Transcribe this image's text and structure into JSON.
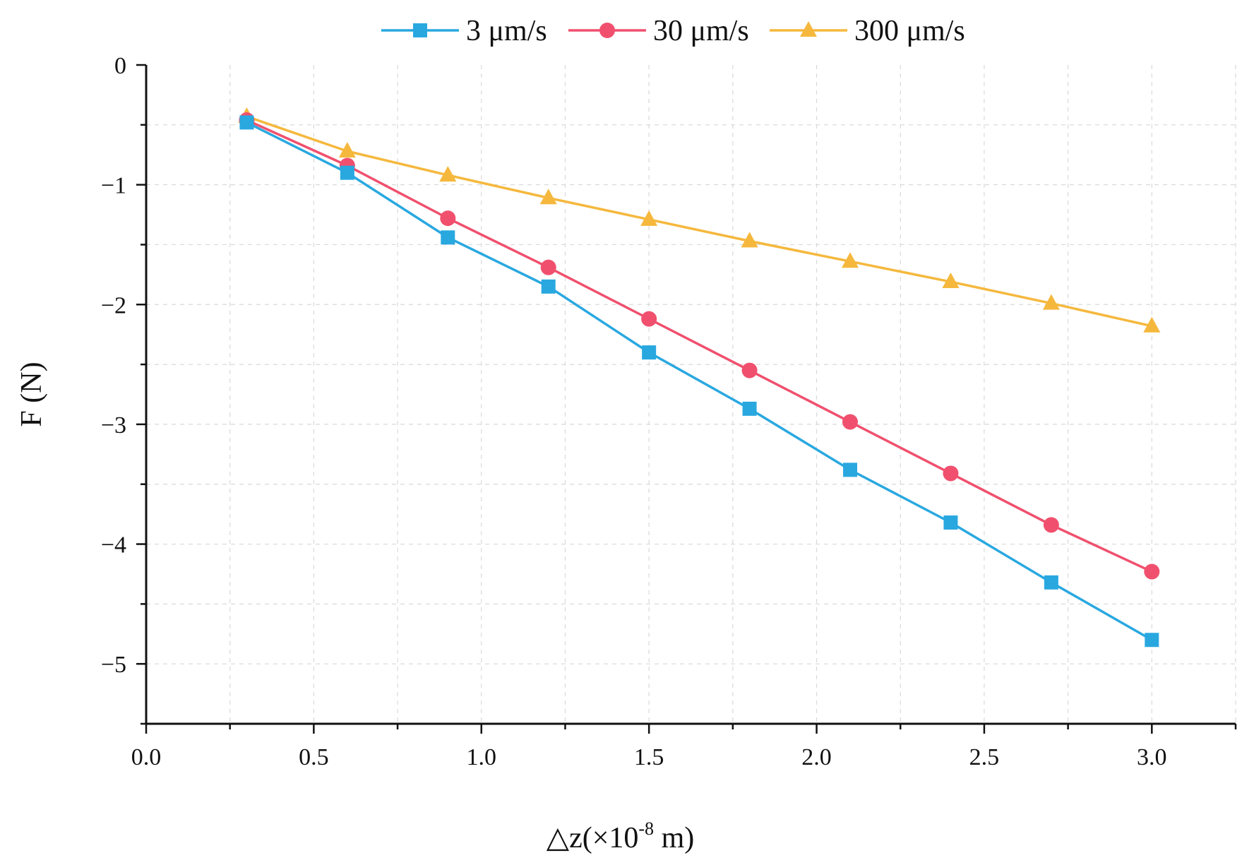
{
  "chart_data": {
    "type": "line",
    "title": "",
    "xlabel": "△z(×10",
    "xlabel_exponent": "-8",
    "xlabel_unit": " m)",
    "ylabel": "F (N)",
    "xlim": [
      0.0,
      3.25
    ],
    "ylim": [
      -5.5,
      0
    ],
    "x_ticks": [
      0.0,
      0.5,
      1.0,
      1.5,
      2.0,
      2.5,
      3.0
    ],
    "x_tick_labels": [
      "0.0",
      "0.5",
      "1.0",
      "1.5",
      "2.0",
      "2.5",
      "3.0"
    ],
    "y_ticks": [
      0,
      -1,
      -2,
      -3,
      -4,
      -5
    ],
    "y_tick_labels": [
      "0",
      "−1",
      "−2",
      "−3",
      "−4",
      "−5"
    ],
    "grid": true,
    "legend_position": "top-center",
    "x": [
      0.3,
      0.6,
      0.9,
      1.2,
      1.5,
      1.8,
      2.1,
      2.4,
      2.7,
      3.0
    ],
    "series": [
      {
        "name": "3 μm/s",
        "marker": "square",
        "color": "#29a8e0",
        "values": [
          -0.48,
          -0.9,
          -1.44,
          -1.85,
          -2.4,
          -2.87,
          -3.38,
          -3.82,
          -4.32,
          -4.8
        ]
      },
      {
        "name": "30 μm/s",
        "marker": "circle",
        "color": "#f0506e",
        "values": [
          -0.46,
          -0.84,
          -1.28,
          -1.69,
          -2.12,
          -2.55,
          -2.98,
          -3.41,
          -3.84,
          -4.23
        ]
      },
      {
        "name": "300 μm/s",
        "marker": "triangle",
        "color": "#f5b83d",
        "values": [
          -0.43,
          -0.72,
          -0.92,
          -1.11,
          -1.29,
          -1.47,
          -1.64,
          -1.81,
          -1.99,
          -2.18
        ]
      }
    ]
  }
}
